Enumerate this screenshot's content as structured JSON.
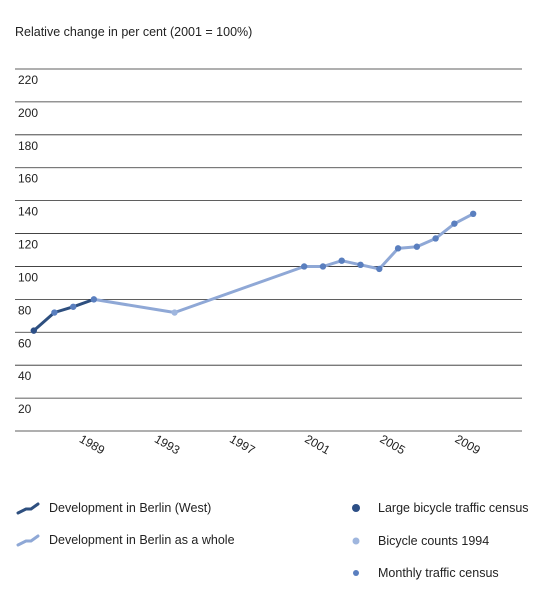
{
  "chart_data": {
    "type": "line",
    "ylabel": "Relative change in per cent (2001 = 100%)",
    "ylim": [
      0,
      220
    ],
    "yticks": [
      20,
      40,
      60,
      80,
      100,
      120,
      140,
      160,
      180,
      200,
      220
    ],
    "xlim": [
      1985,
      2012
    ],
    "xticks": [
      "1989",
      "1993",
      "1997",
      "2001",
      "2005",
      "2009"
    ],
    "series": [
      {
        "name": "Development in Berlin (West)",
        "color": "#2e4f7f",
        "points": [
          [
            1986,
            61
          ],
          [
            1987.1,
            72
          ],
          [
            1988.1,
            75.5
          ],
          [
            1989.2,
            80
          ]
        ]
      },
      {
        "name": "Development in Berlin as a whole",
        "color": "#8fa8d6",
        "points": [
          [
            1989.2,
            80
          ],
          [
            1993.5,
            72
          ],
          [
            2000.4,
            100
          ],
          [
            2001.4,
            100
          ],
          [
            2002.4,
            103.5
          ],
          [
            2003.4,
            101
          ],
          [
            2004.4,
            98.5
          ],
          [
            2005.4,
            111
          ],
          [
            2006.4,
            112
          ],
          [
            2007.4,
            117
          ],
          [
            2008.4,
            126
          ],
          [
            2009.4,
            132
          ]
        ]
      }
    ],
    "markers": [
      {
        "name": "Large bicycle traffic census",
        "color": "#2d4f86",
        "points": [
          [
            1986,
            61
          ]
        ]
      },
      {
        "name": "Bicycle counts 1994",
        "color": "#9fb6de",
        "points": [
          [
            1993.5,
            72
          ]
        ]
      },
      {
        "name": "Monthly traffic census",
        "color": "#5a7fbf",
        "points": [
          [
            1987.1,
            72
          ],
          [
            1988.1,
            75.5
          ],
          [
            1989.2,
            80
          ],
          [
            2000.4,
            100
          ],
          [
            2001.4,
            100
          ],
          [
            2002.4,
            103.5
          ],
          [
            2003.4,
            101
          ],
          [
            2004.4,
            98.5
          ],
          [
            2005.4,
            111
          ],
          [
            2006.4,
            112
          ],
          [
            2007.4,
            117
          ],
          [
            2008.4,
            126
          ],
          [
            2009.4,
            132
          ]
        ]
      }
    ],
    "grid": true,
    "legend_position": "bottom"
  }
}
